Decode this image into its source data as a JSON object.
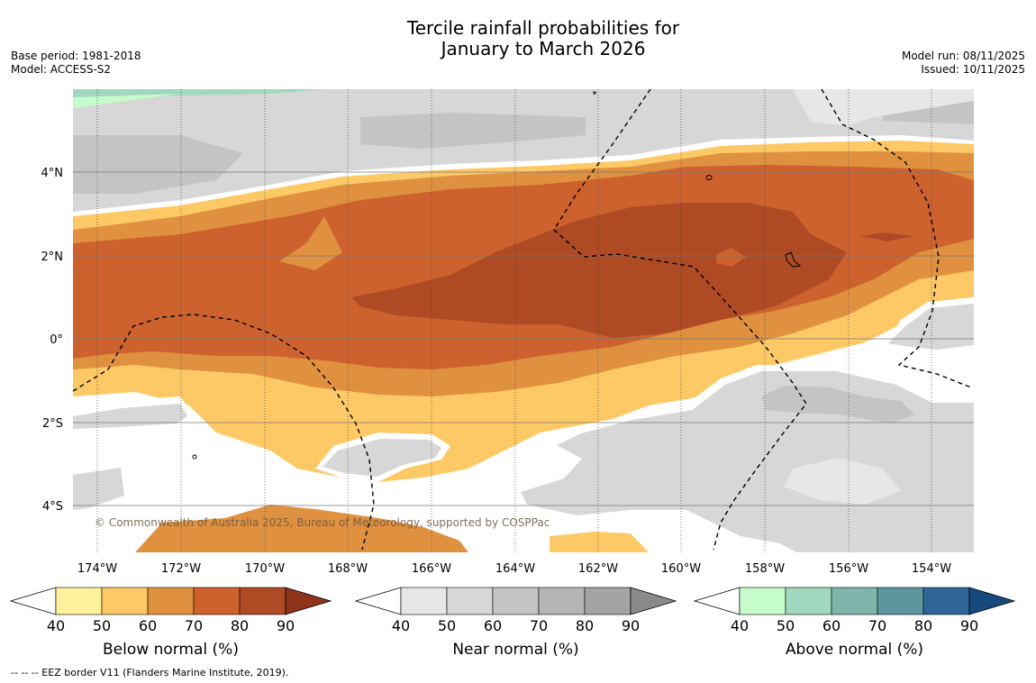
{
  "title_line1": "Tercile rainfall probabilities for",
  "title_line2": "January to March 2026",
  "meta_left": {
    "base_period": "Base period: 1981-2018",
    "model": "Model: ACCESS-S2"
  },
  "meta_right": {
    "model_run": "Model run: 08/11/2025",
    "issued": "Issued: 10/11/2025"
  },
  "lat_labels": [
    "4°N",
    "2°N",
    "0°",
    "2°S",
    "4°S"
  ],
  "lon_labels": [
    "174°W",
    "172°W",
    "170°W",
    "168°W",
    "166°W",
    "164°W",
    "162°W",
    "160°W",
    "158°W",
    "156°W",
    "154°W"
  ],
  "copyright": "© Commonwealth of Australia 2025, Bureau of Meteorology, supported by COSPPac",
  "colorbars": [
    {
      "label": "Below normal (%)",
      "ticks": [
        "40",
        "50",
        "60",
        "70",
        "80",
        "90"
      ],
      "colors": [
        "#fff09c",
        "#fdc966",
        "#e0913f",
        "#cd622e",
        "#ae4a24",
        "#8e3219"
      ]
    },
    {
      "label": "Near normal (%)",
      "ticks": [
        "40",
        "50",
        "60",
        "70",
        "80",
        "90"
      ],
      "colors": [
        "#e7e7e7",
        "#d7d7d7",
        "#c4c4c4",
        "#b5b5b5",
        "#a4a4a4",
        "#8a8a8a"
      ]
    },
    {
      "label": "Above normal (%)",
      "ticks": [
        "40",
        "50",
        "60",
        "70",
        "80",
        "90"
      ],
      "colors": [
        "#c6fbcb",
        "#a0d7be",
        "#80b5ab",
        "#5e96a0",
        "#2f6699",
        "#16497c"
      ]
    }
  ],
  "footer": "-- -- -- EEZ border V11 (Flanders Marine Institute, 2019)."
}
